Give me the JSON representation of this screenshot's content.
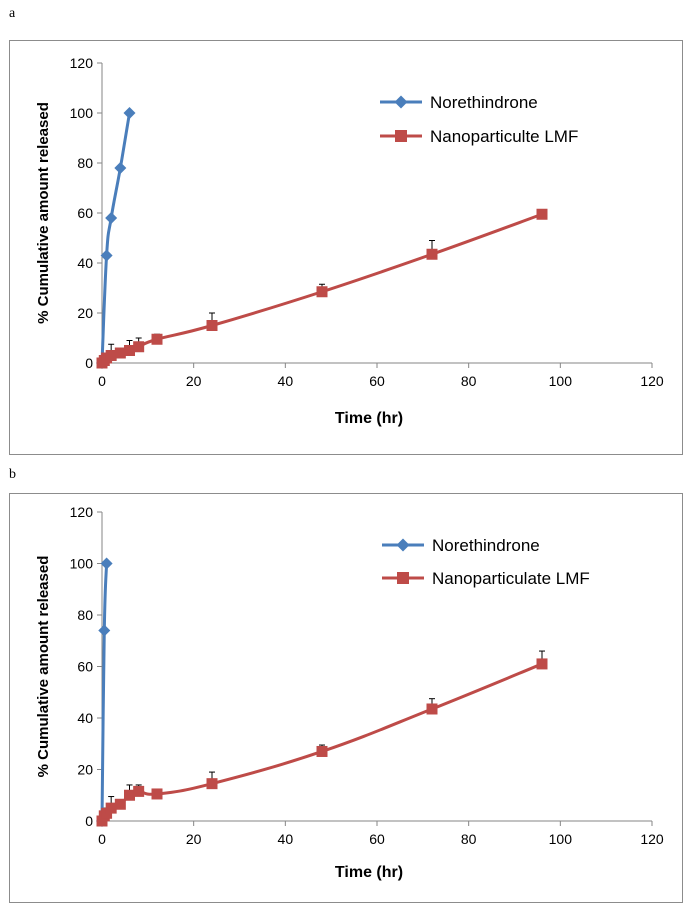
{
  "chart_data": [
    {
      "panel_label": "a",
      "type": "line",
      "title": "",
      "xlabel": "Time (hr)",
      "ylabel": "% Cumulative amount released",
      "xlim": [
        0,
        120
      ],
      "ylim": [
        0,
        120
      ],
      "xticks": [
        0,
        20,
        40,
        60,
        80,
        100,
        120
      ],
      "yticks": [
        0,
        20,
        40,
        60,
        80,
        100,
        120
      ],
      "grid": false,
      "legend_position": "top-right",
      "series": [
        {
          "name": "Norethindrone",
          "color": "#4a7ebb",
          "marker": "diamond",
          "x": [
            0,
            1,
            2,
            4,
            6
          ],
          "y": [
            0,
            43,
            58,
            78,
            100
          ],
          "error": [
            0,
            0,
            0,
            0,
            0
          ]
        },
        {
          "name": "Nanoparticulte LMF",
          "color": "#be4b48",
          "marker": "square",
          "x": [
            0,
            0.5,
            1,
            2,
            4,
            6,
            8,
            12,
            24,
            48,
            72,
            96
          ],
          "y": [
            0,
            1,
            2,
            3,
            4,
            5,
            6.5,
            9.5,
            15,
            28.5,
            43.5,
            59.5
          ],
          "error": [
            0,
            1,
            2,
            4.5,
            2,
            4,
            3.5,
            2,
            5,
            3,
            5.5,
            1.5
          ]
        }
      ]
    },
    {
      "panel_label": "b",
      "type": "line",
      "title": "",
      "xlabel": "Time (hr)",
      "ylabel": "% Cumulative amount released",
      "xlim": [
        0,
        120
      ],
      "ylim": [
        0,
        120
      ],
      "xticks": [
        0,
        20,
        40,
        60,
        80,
        100,
        120
      ],
      "yticks": [
        0,
        20,
        40,
        60,
        80,
        100,
        120
      ],
      "grid": false,
      "legend_position": "top-right",
      "series": [
        {
          "name": "Norethindrone",
          "color": "#4a7ebb",
          "marker": "diamond",
          "x": [
            0,
            0.5,
            1
          ],
          "y": [
            0,
            74,
            100
          ],
          "error": [
            0,
            0,
            0
          ]
        },
        {
          "name": "Nanoparticulate LMF",
          "color": "#be4b48",
          "marker": "square",
          "x": [
            0,
            0.5,
            1,
            2,
            4,
            6,
            8,
            12,
            24,
            48,
            72,
            96
          ],
          "y": [
            0,
            2,
            3,
            5,
            6.5,
            10,
            11.5,
            10.5,
            14.5,
            27,
            43.5,
            61
          ],
          "error": [
            0,
            1,
            2,
            4.5,
            1.5,
            4,
            2.5,
            1.5,
            4.5,
            2.5,
            4,
            5
          ]
        }
      ]
    }
  ]
}
